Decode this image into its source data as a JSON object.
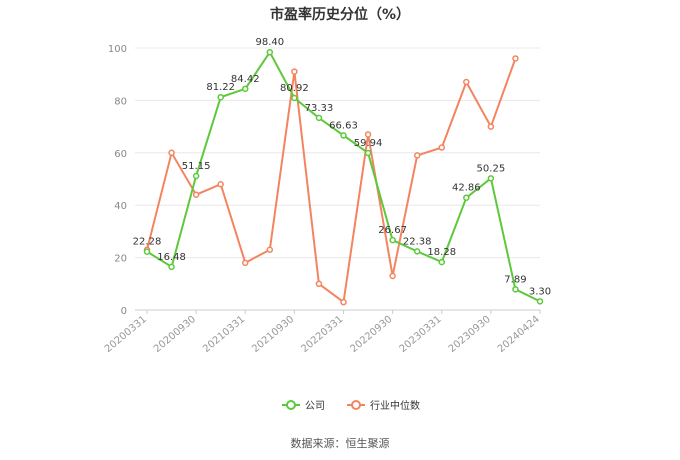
{
  "chart_data": {
    "type": "line",
    "title": "市盈率历史分位（%）",
    "source": "数据来源：恒生聚源",
    "ylim": [
      0,
      100
    ],
    "yticks": [
      0,
      20,
      40,
      60,
      80,
      100
    ],
    "grid": true,
    "legend_position": "bottom",
    "x": [
      "20200331",
      "20200630",
      "20200930",
      "20201231",
      "20210331",
      "20210630",
      "20210930",
      "20211231",
      "20220331",
      "20220630",
      "20220930",
      "20221231",
      "20230331",
      "20230630",
      "20230930",
      "20231231",
      "20240424"
    ],
    "xtick_labels": [
      "20200331",
      "20200930",
      "20210331",
      "20210930",
      "20220331",
      "20220930",
      "20230331",
      "20230930",
      "20240424"
    ],
    "series": [
      {
        "name": "公司",
        "color": "#5cc93a",
        "show_labels": true,
        "values": [
          22.28,
          16.48,
          51.15,
          81.22,
          84.42,
          98.4,
          80.92,
          73.33,
          66.63,
          59.94,
          26.67,
          22.38,
          18.28,
          42.86,
          50.25,
          7.89,
          3.3
        ]
      },
      {
        "name": "行业中位数",
        "color": "#f4845f",
        "show_labels": false,
        "values": [
          23,
          60,
          44,
          48,
          18,
          23,
          91,
          10,
          3,
          67,
          13,
          59,
          62,
          87,
          70,
          96,
          null
        ]
      }
    ]
  }
}
